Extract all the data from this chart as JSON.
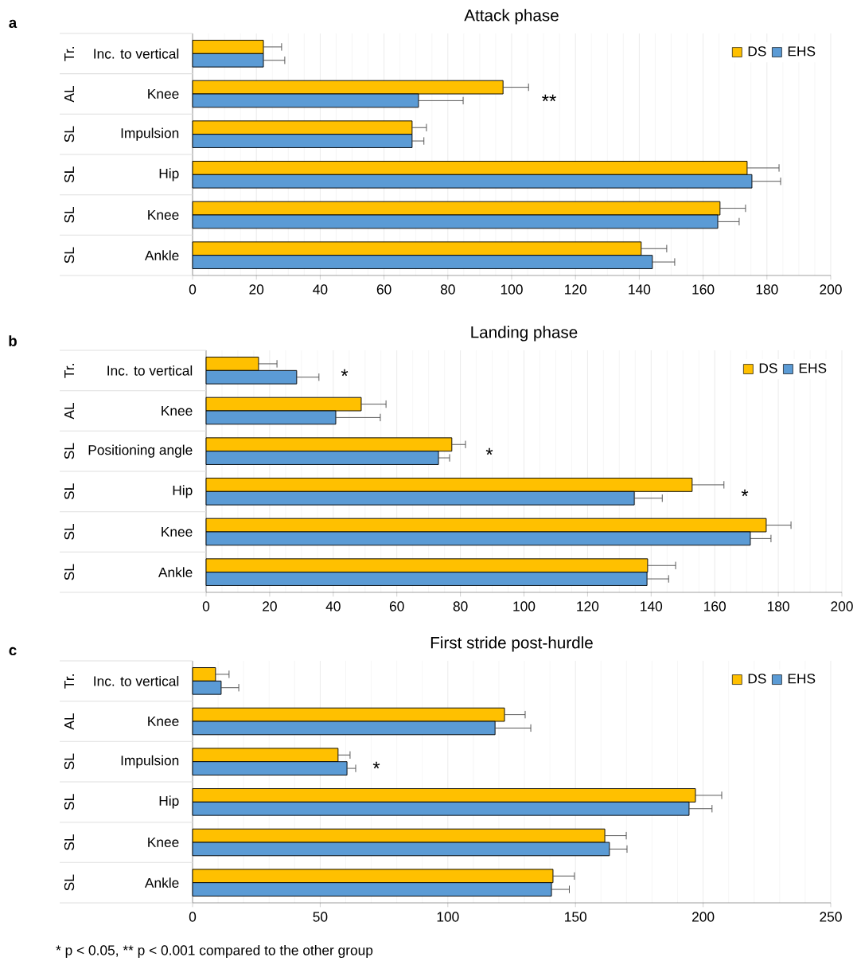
{
  "chart_data": [
    {
      "type": "bar",
      "orientation": "horizontal",
      "title": "Attack phase",
      "categories": [
        "Inc. to vertical",
        "Knee",
        "Impulsion",
        "Hip",
        "Knee",
        "Ankle"
      ],
      "series": [
        {
          "name": "DS",
          "color": "#ffc000",
          "values": [
            22.2,
            97.3,
            68.8,
            173.8,
            165.3,
            140.6
          ],
          "errors": [
            5.7,
            8,
            4.5,
            10,
            8,
            8
          ]
        },
        {
          "name": "EHS",
          "color": "#5b9bd5",
          "values": [
            22.2,
            70.8,
            68.8,
            175.3,
            164.6,
            144.1
          ],
          "errors": [
            6.7,
            14,
            3.7,
            9,
            6.7,
            7
          ]
        }
      ],
      "xlim": [
        0,
        200
      ],
      "xticks": [
        0,
        20,
        40,
        60,
        80,
        100,
        120,
        140,
        160,
        180,
        200
      ],
      "grid": "x",
      "legend": "top right",
      "annotations": [
        "a",
        "Tr.",
        "AL",
        "SL",
        "SL",
        "SL",
        "SL",
        "**"
      ]
    },
    {
      "type": "bar",
      "orientation": "horizontal",
      "title": "Landing phase",
      "categories": [
        "Inc. to vertical",
        "Knee",
        "Positioning angle",
        "Hip",
        "Knee",
        "Ankle"
      ],
      "series": [
        {
          "name": "DS",
          "color": "#ffc000",
          "values": [
            16.5,
            48.8,
            77.3,
            152.9,
            176.2,
            138.9
          ],
          "errors": [
            5.8,
            7.8,
            4.3,
            10,
            7.8,
            8.8
          ]
        },
        {
          "name": "EHS",
          "color": "#5b9bd5",
          "values": [
            28.5,
            40.8,
            73.1,
            134.7,
            171.2,
            138.7
          ],
          "errors": [
            7,
            14,
            3.5,
            8.8,
            6.5,
            6.8
          ]
        }
      ],
      "xlim": [
        0,
        200
      ],
      "xticks": [
        0,
        20,
        40,
        60,
        80,
        100,
        120,
        140,
        160,
        180,
        200
      ],
      "grid": "x",
      "legend": "top right",
      "annotations": [
        "b",
        "Tr.",
        "AL",
        "SL",
        "SL",
        "SL",
        "SL",
        "*",
        "*",
        "*"
      ]
    },
    {
      "type": "bar",
      "orientation": "horizontal",
      "title": "First stride post-hurdle",
      "categories": [
        "Inc. to vertical",
        "Knee",
        "Impulsion",
        "Hip",
        "Knee",
        "Ankle"
      ],
      "series": [
        {
          "name": "DS",
          "color": "#ffc000",
          "values": [
            9.0,
            122.2,
            57.0,
            197.0,
            161.5,
            141.2
          ],
          "errors": [
            5.3,
            8.1,
            4.7,
            10.3,
            8.4,
            8.4
          ]
        },
        {
          "name": "EHS",
          "color": "#5b9bd5",
          "values": [
            11.2,
            118.5,
            60.5,
            194.5,
            163.3,
            140.6
          ],
          "errors": [
            6.9,
            14,
            3.4,
            9,
            6.9,
            7
          ]
        }
      ],
      "xlim": [
        0,
        250
      ],
      "xticks": [
        0,
        50,
        100,
        150,
        200,
        250
      ],
      "grid": "x",
      "legend": "top right",
      "annotations": [
        "c",
        "Tr.",
        "AL",
        "SL",
        "SL",
        "SL",
        "SL",
        "*",
        "* p < 0.05, ** p < 0.001 compared to the other group"
      ]
    }
  ]
}
